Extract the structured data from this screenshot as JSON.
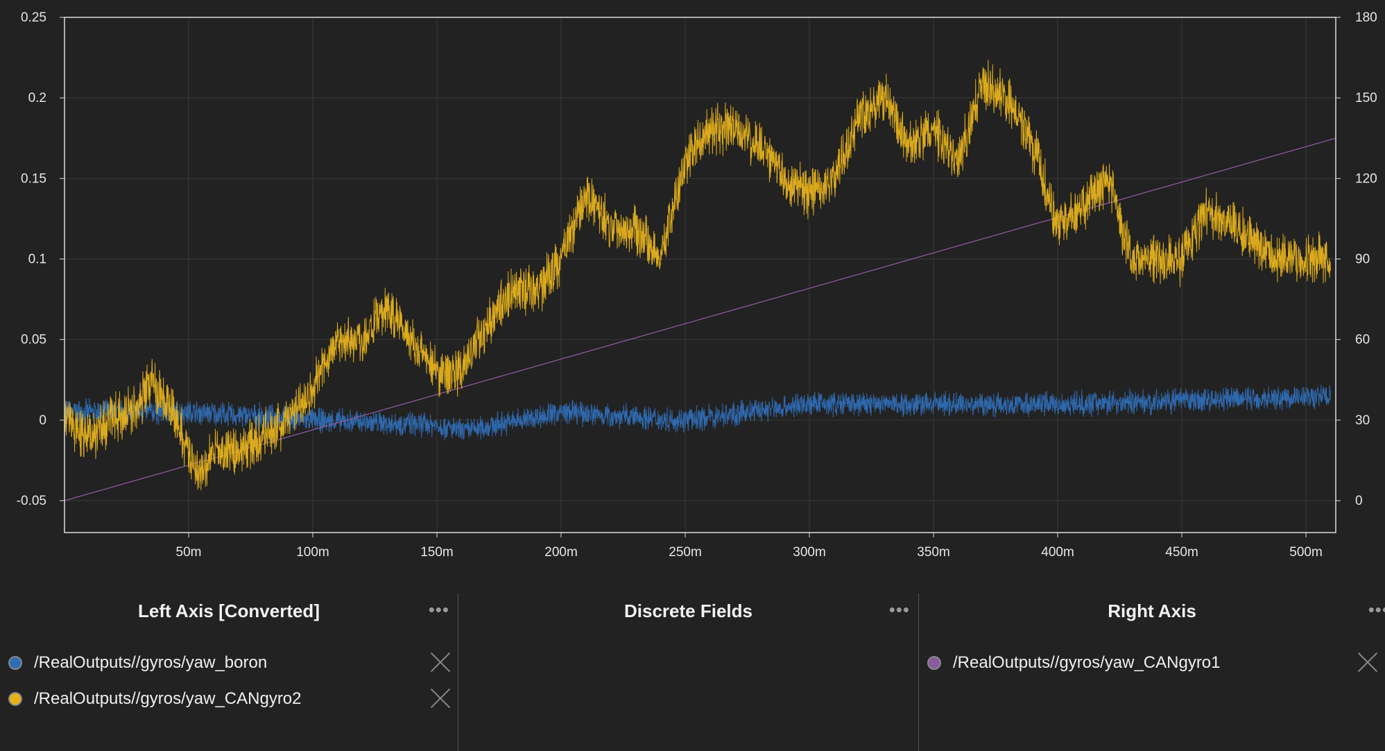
{
  "chart_data": {
    "type": "line",
    "x_unit": "m",
    "left_axis": {
      "ylim": [
        -0.07,
        0.25
      ],
      "ticks": [
        "-0.05",
        "0",
        "0.05",
        "0.1",
        "0.15",
        "0.2",
        "0.25"
      ],
      "tick_values": [
        -0.05,
        0,
        0.05,
        0.1,
        0.15,
        0.2,
        0.25
      ]
    },
    "right_axis": {
      "ylim": [
        -20,
        180
      ],
      "ticks": [
        "0",
        "30",
        "60",
        "90",
        "120",
        "150",
        "180"
      ],
      "tick_values": [
        0,
        30,
        60,
        90,
        120,
        150,
        180
      ]
    },
    "xlim": [
      0,
      512
    ],
    "x_ticks": [
      "50m",
      "100m",
      "150m",
      "200m",
      "250m",
      "300m",
      "350m",
      "400m",
      "450m",
      "500m"
    ],
    "x_tick_values": [
      50,
      100,
      150,
      200,
      250,
      300,
      350,
      400,
      450,
      500
    ],
    "grid": true,
    "series": [
      {
        "name": "/RealOutputs//gyros/yaw_boron",
        "axis": "left",
        "color": "#2f6db5",
        "x": [
          0,
          50,
          100,
          150,
          160,
          200,
          250,
          300,
          350,
          400,
          450,
          510
        ],
        "y": [
          0.005,
          0.005,
          0.0,
          -0.003,
          -0.007,
          0.005,
          0.0,
          0.01,
          0.01,
          0.01,
          0.012,
          0.015
        ]
      },
      {
        "name": "/RealOutputs//gyros/yaw_CANgyro2",
        "axis": "left",
        "color": "#e6b21c",
        "x": [
          0,
          10,
          20,
          30,
          35,
          45,
          50,
          55,
          60,
          70,
          80,
          90,
          100,
          110,
          120,
          130,
          140,
          150,
          160,
          170,
          180,
          190,
          200,
          210,
          220,
          230,
          240,
          250,
          260,
          270,
          280,
          290,
          300,
          310,
          320,
          330,
          340,
          350,
          360,
          370,
          380,
          390,
          400,
          410,
          420,
          430,
          440,
          450,
          460,
          470,
          480,
          490,
          500,
          510
        ],
        "y": [
          0.0,
          -0.01,
          0.0,
          0.01,
          0.025,
          0.0,
          -0.02,
          -0.035,
          -0.02,
          -0.02,
          -0.01,
          0.0,
          0.02,
          0.05,
          0.05,
          0.07,
          0.05,
          0.03,
          0.03,
          0.06,
          0.08,
          0.08,
          0.1,
          0.14,
          0.12,
          0.12,
          0.1,
          0.16,
          0.18,
          0.18,
          0.17,
          0.15,
          0.14,
          0.15,
          0.19,
          0.2,
          0.17,
          0.18,
          0.16,
          0.21,
          0.2,
          0.17,
          0.12,
          0.13,
          0.15,
          0.1,
          0.1,
          0.1,
          0.13,
          0.12,
          0.11,
          0.1,
          0.1,
          0.1
        ]
      },
      {
        "name": "/RealOutputs//gyros/yaw_CANgyro1",
        "axis": "right",
        "color": "#8a5a9e",
        "x": [
          0,
          512
        ],
        "y": [
          0,
          135
        ]
      }
    ]
  },
  "legend": {
    "left": {
      "title": "Left Axis [Converted]",
      "items": [
        "/RealOutputs//gyros/yaw_boron",
        "/RealOutputs//gyros/yaw_CANgyro2"
      ]
    },
    "discrete": {
      "title": "Discrete Fields"
    },
    "right": {
      "title": "Right Axis",
      "items": [
        "/RealOutputs//gyros/yaw_CANgyro1"
      ]
    },
    "menu_label": "•••"
  }
}
